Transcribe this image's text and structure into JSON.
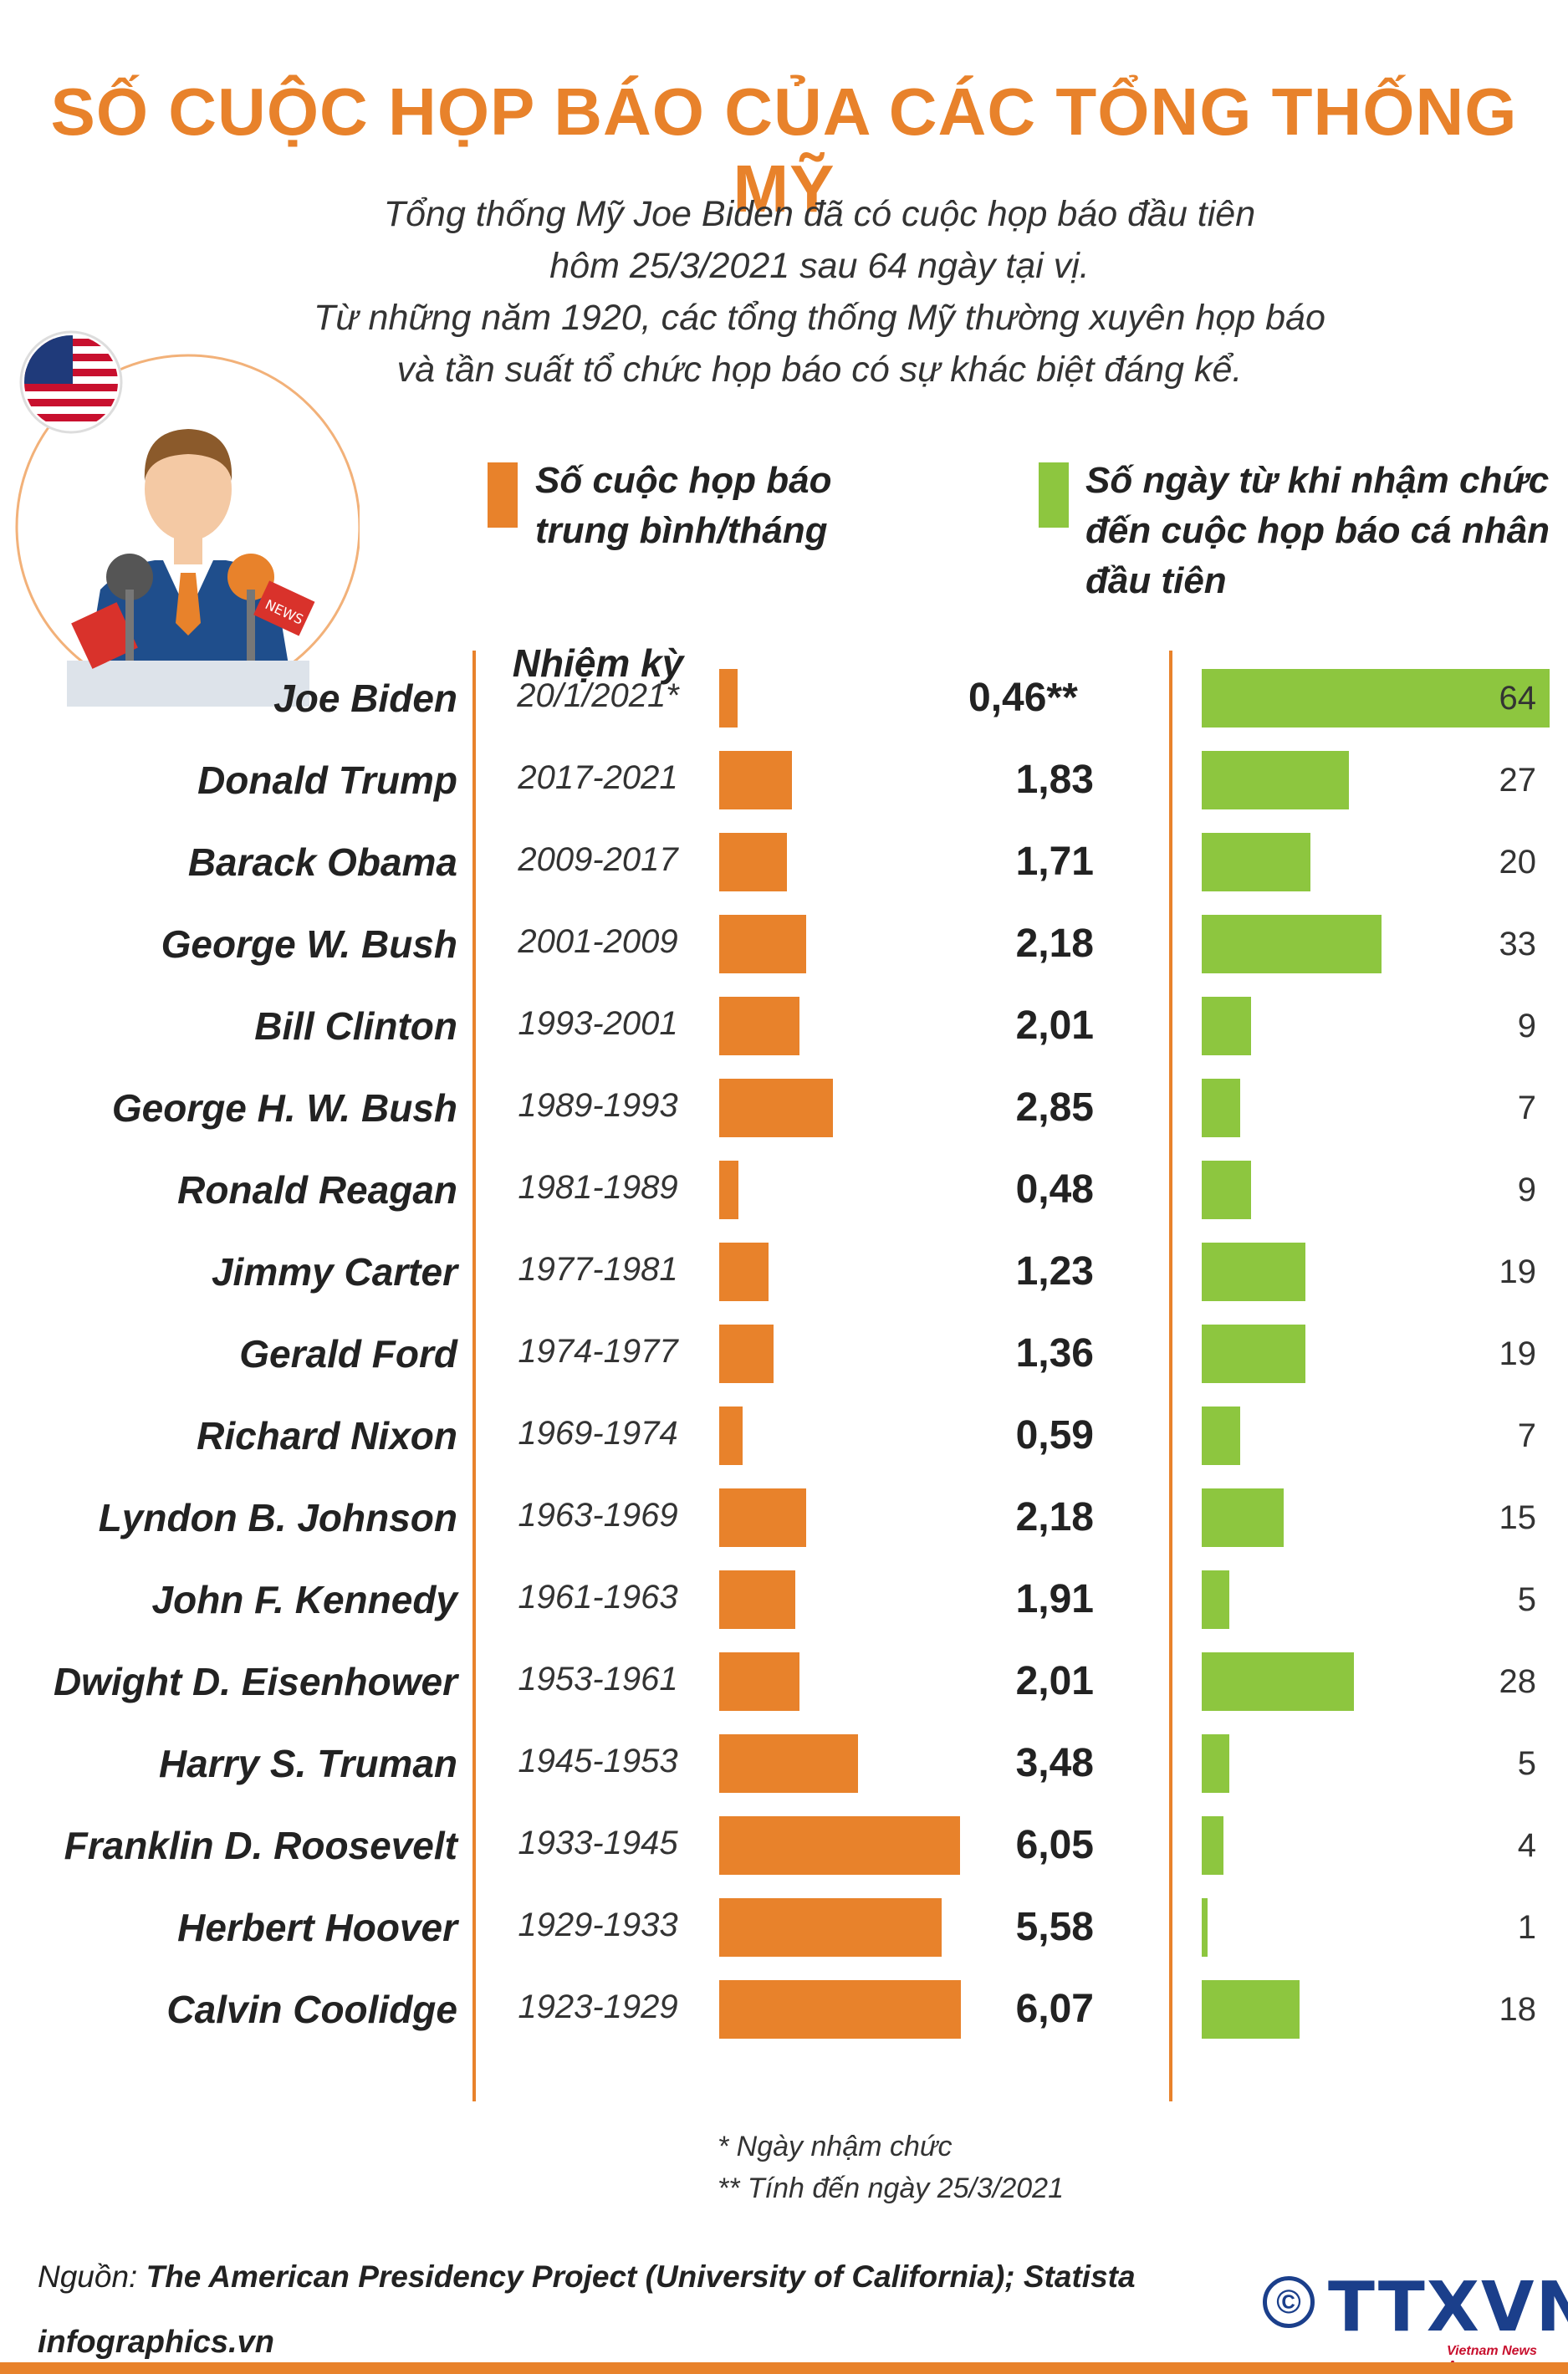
{
  "title": "SỐ CUỘC HỌP BÁO CỦA CÁC TỔNG THỐNG MỸ",
  "intro": [
    "Tổng thống Mỹ Joe Biden đã có cuộc họp báo đầu tiên",
    "hôm 25/3/2021 sau 64 ngày tại vị.",
    "Từ những năm 1920, các tổng thống Mỹ thường xuyên họp báo",
    "và tần suất tổ chức họp báo có sự khác biệt đáng kể."
  ],
  "illustration": {
    "mic_label": "NEWS"
  },
  "legend": {
    "orange_line1": "Số cuộc họp báo",
    "orange_line2": "trung bình/tháng",
    "green_line1": "Số ngày từ khi nhậm chức",
    "green_line2": "đến cuộc họp báo cá nhân",
    "green_line3": "đầu tiên"
  },
  "colors": {
    "orange": "#E8822B",
    "green": "#8DC63F"
  },
  "chart_data": {
    "type": "bar",
    "term_header": "Nhiệm kỳ",
    "categories": [
      "Joe Biden",
      "Donald Trump",
      "Barack Obama",
      "George W. Bush",
      "Bill Clinton",
      "George H. W. Bush",
      "Ronald Reagan",
      "Jimmy Carter",
      "Gerald Ford",
      "Richard Nixon",
      "Lyndon B. Johnson",
      "John F. Kennedy",
      "Dwight D. Eisenhower",
      "Harry S. Truman",
      "Franklin D. Roosevelt",
      "Herbert Hoover",
      "Calvin Coolidge"
    ],
    "terms": [
      "20/1/2021*",
      "2017-2021",
      "2009-2017",
      "2001-2009",
      "1993-2001",
      "1989-1993",
      "1981-1989",
      "1977-1981",
      "1974-1977",
      "1969-1974",
      "1963-1969",
      "1961-1963",
      "1953-1961",
      "1945-1953",
      "1933-1945",
      "1929-1933",
      "1923-1929"
    ],
    "series": [
      {
        "name": "Số cuộc họp báo trung bình/tháng",
        "values": [
          0.46,
          1.83,
          1.71,
          2.18,
          2.01,
          2.85,
          0.48,
          1.23,
          1.36,
          0.59,
          2.18,
          1.91,
          2.01,
          3.48,
          6.05,
          5.58,
          6.07
        ],
        "labels": [
          "0,46**",
          "1,83",
          "1,71",
          "2,18",
          "2,01",
          "2,85",
          "0,48",
          "1,23",
          "1,36",
          "0,59",
          "2,18",
          "1,91",
          "2,01",
          "3,48",
          "6,05",
          "5,58",
          "6,07"
        ]
      },
      {
        "name": "Số ngày từ khi nhậm chức đến cuộc họp báo cá nhân đầu tiên",
        "values": [
          64,
          27,
          20,
          33,
          9,
          7,
          9,
          19,
          19,
          7,
          15,
          5,
          28,
          5,
          4,
          1,
          18
        ],
        "labels": [
          "64",
          "27",
          "20",
          "33",
          "9",
          "7",
          "9",
          "19",
          "19",
          "7",
          "15",
          "5",
          "28",
          "5",
          "4",
          "1",
          "18"
        ]
      }
    ]
  },
  "notes": {
    "note1": "* Ngày nhậm chức",
    "note2": "** Tính đến ngày 25/3/2021"
  },
  "source": {
    "label": "Nguồn: ",
    "text": "The American Presidency Project (University of California); Statista"
  },
  "footer": {
    "site": "infographics.vn",
    "copyright": "©",
    "logo": "TTXVN",
    "logo_sub": "Vietnam News Agency"
  }
}
